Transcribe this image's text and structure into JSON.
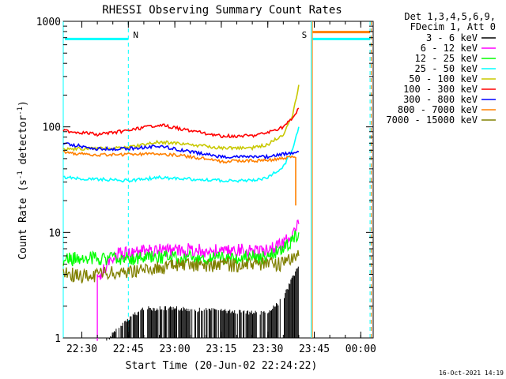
{
  "chart_data": {
    "type": "line",
    "title": "RHESSI Observing Summary Count Rates",
    "xlabel": "Start Time (20-Jun-02 22:24:22)",
    "ylabel": "Count Rate (s⁻¹ detector⁻¹)",
    "ylabel_parts": [
      "Count Rate (s",
      "-1",
      " detector",
      "-1",
      ")"
    ],
    "yscale": "log",
    "ylim": [
      1,
      1000
    ],
    "xlim": [
      "22:24",
      "00:04"
    ],
    "x_ticks": [
      "22:30",
      "22:45",
      "23:00",
      "23:15",
      "23:30",
      "23:45",
      "00:00"
    ],
    "y_ticks": [
      "1",
      "10",
      "100",
      "1000"
    ],
    "legend_header": [
      "Det 1,3,4,5,6,9,",
      "FDecim 1, Att 0"
    ],
    "legend_placement": "right",
    "timestamp": "16-Oct-2021 14:19",
    "markers": [
      {
        "label": "N",
        "time": "22:45",
        "color": "#00ffff"
      },
      {
        "label": "S",
        "time": "23:44",
        "color": "#ff8000"
      }
    ],
    "vertical_lines": [
      {
        "time": "22:24",
        "color": "#00ffff",
        "style": "solid"
      },
      {
        "time": "22:45",
        "color": "#00ffff",
        "style": "dashed"
      },
      {
        "time": "23:44",
        "color": "#00ffff",
        "style": "solid"
      },
      {
        "time": "23:44",
        "color": "#ff8000",
        "style": "solid"
      },
      {
        "time": "00:03",
        "color": "#00ffff",
        "style": "dashed"
      },
      {
        "time": "00:03",
        "color": "#ff8000",
        "style": "dashed"
      }
    ],
    "flag_bars": [
      {
        "color": "#00ffff",
        "value": 680,
        "segments": [
          [
            "22:24",
            "22:45"
          ],
          [
            "23:44",
            "00:03"
          ]
        ]
      },
      {
        "color": "#ff8000",
        "value": 790,
        "segments": [
          [
            "23:44",
            "00:03"
          ]
        ]
      }
    ],
    "series": [
      {
        "name": "3 - 6 keV",
        "color": "#000000",
        "style": "spiky",
        "points": [
          [
            "22:38",
            1
          ],
          [
            "22:45",
            1.6
          ],
          [
            "22:50",
            2
          ],
          [
            "23:00",
            2
          ],
          [
            "23:15",
            1.9
          ],
          [
            "23:30",
            1.8
          ],
          [
            "23:35",
            2.5
          ],
          [
            "23:38",
            4
          ],
          [
            "23:40",
            5
          ]
        ]
      },
      {
        "name": "6 - 12 keV",
        "color": "#ff00ff",
        "style": "noisy",
        "points": [
          [
            "22:35",
            1
          ],
          [
            "22:35",
            3.5
          ],
          [
            "22:40",
            6
          ],
          [
            "22:45",
            6.5
          ],
          [
            "23:00",
            6.8
          ],
          [
            "23:15",
            6.6
          ],
          [
            "23:30",
            6.8
          ],
          [
            "23:35",
            8
          ],
          [
            "23:38",
            10
          ],
          [
            "23:40",
            12
          ]
        ]
      },
      {
        "name": "12 - 25 keV",
        "color": "#00ff00",
        "style": "noisy",
        "points": [
          [
            "22:24",
            5.5
          ],
          [
            "22:30",
            5.7
          ],
          [
            "22:45",
            5.6
          ],
          [
            "23:00",
            5.8
          ],
          [
            "23:15",
            5.7
          ],
          [
            "23:30",
            5.8
          ],
          [
            "23:35",
            7
          ],
          [
            "23:40",
            10
          ]
        ]
      },
      {
        "name": "25 - 50 keV",
        "color": "#00ffff",
        "style": "line",
        "points": [
          [
            "22:24",
            33
          ],
          [
            "22:35",
            32
          ],
          [
            "22:45",
            31
          ],
          [
            "22:55",
            33
          ],
          [
            "23:05",
            32
          ],
          [
            "23:15",
            31
          ],
          [
            "23:25",
            31
          ],
          [
            "23:30",
            33
          ],
          [
            "23:35",
            42
          ],
          [
            "23:38",
            60
          ],
          [
            "23:40",
            100
          ]
        ]
      },
      {
        "name": "50 - 100 keV",
        "color": "#c8c800",
        "style": "line",
        "points": [
          [
            "22:24",
            62
          ],
          [
            "22:35",
            62
          ],
          [
            "22:45",
            64
          ],
          [
            "22:55",
            72
          ],
          [
            "23:05",
            68
          ],
          [
            "23:15",
            63
          ],
          [
            "23:25",
            63
          ],
          [
            "23:30",
            68
          ],
          [
            "23:35",
            85
          ],
          [
            "23:38",
            130
          ],
          [
            "23:40",
            250
          ]
        ]
      },
      {
        "name": "100 - 300 keV",
        "color": "#ff0000",
        "style": "line",
        "points": [
          [
            "22:24",
            92
          ],
          [
            "22:35",
            85
          ],
          [
            "22:45",
            92
          ],
          [
            "22:55",
            105
          ],
          [
            "23:05",
            92
          ],
          [
            "23:15",
            82
          ],
          [
            "23:25",
            82
          ],
          [
            "23:30",
            88
          ],
          [
            "23:35",
            100
          ],
          [
            "23:38",
            120
          ],
          [
            "23:40",
            150
          ]
        ]
      },
      {
        "name": "300 - 800 keV",
        "color": "#0000ff",
        "style": "line",
        "points": [
          [
            "22:24",
            70
          ],
          [
            "22:35",
            62
          ],
          [
            "22:45",
            62
          ],
          [
            "22:55",
            66
          ],
          [
            "23:05",
            58
          ],
          [
            "23:15",
            52
          ],
          [
            "23:25",
            52
          ],
          [
            "23:30",
            52
          ],
          [
            "23:35",
            55
          ],
          [
            "23:40",
            58
          ]
        ]
      },
      {
        "name": "800 - 7000 keV",
        "color": "#ff8000",
        "style": "line",
        "points": [
          [
            "22:24",
            57
          ],
          [
            "22:35",
            54
          ],
          [
            "22:45",
            55
          ],
          [
            "22:55",
            56
          ],
          [
            "23:05",
            52
          ],
          [
            "23:15",
            47
          ],
          [
            "23:25",
            48
          ],
          [
            "23:30",
            48
          ],
          [
            "23:35",
            50
          ],
          [
            "23:39",
            52
          ],
          [
            "23:39",
            18
          ]
        ]
      },
      {
        "name": "7000 - 15000 keV",
        "color": "#808000",
        "style": "noisy",
        "points": [
          [
            "22:24",
            4.2
          ],
          [
            "22:30",
            3.8
          ],
          [
            "22:45",
            4.3
          ],
          [
            "23:00",
            4.8
          ],
          [
            "23:15",
            4.9
          ],
          [
            "23:30",
            5
          ],
          [
            "23:35",
            5
          ],
          [
            "23:40",
            6
          ]
        ]
      }
    ]
  }
}
